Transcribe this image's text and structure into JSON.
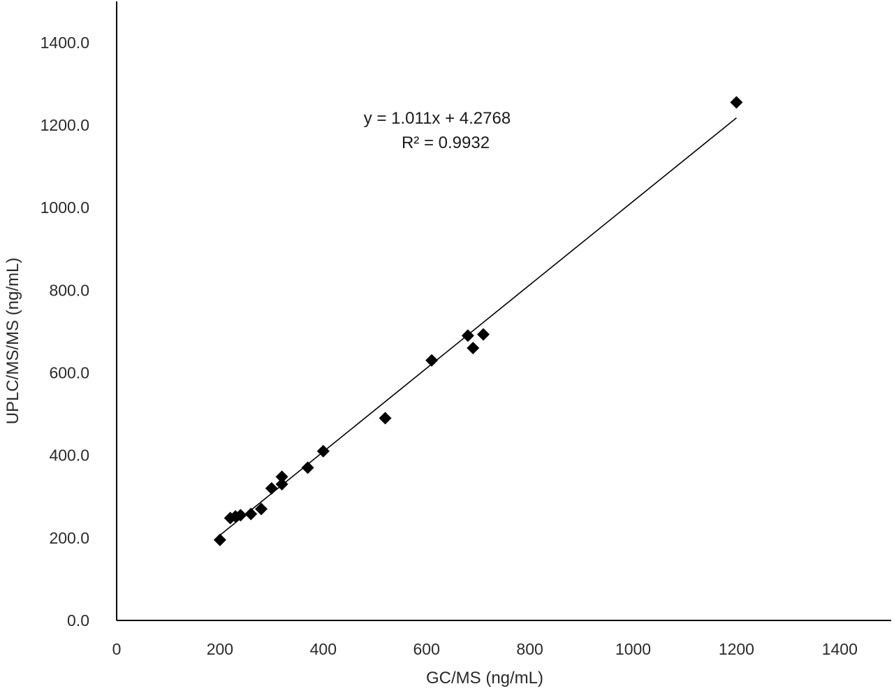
{
  "chart_data": {
    "type": "scatter",
    "title": "",
    "xlabel": "GC/MS (ng/mL)",
    "ylabel": "UPLC/MS/MS (ng/mL)",
    "xlim": [
      0,
      1500
    ],
    "ylim": [
      0,
      1500
    ],
    "x_ticks": [
      0,
      200,
      400,
      600,
      800,
      1000,
      1200,
      1400
    ],
    "x_tick_labels": [
      "0",
      "200",
      "400",
      "600",
      "800",
      "1000",
      "1200",
      "1400"
    ],
    "y_ticks": [
      0,
      200,
      400,
      600,
      800,
      1000,
      1200,
      1400
    ],
    "y_tick_labels": [
      "0.0",
      "200.0",
      "400.0",
      "600.0",
      "800.0",
      "1000.0",
      "1200.0",
      "1400.0"
    ],
    "grid": false,
    "legend": "none",
    "marker": "diamond",
    "marker_color": "#000000",
    "series": [
      {
        "x": [
          200,
          220,
          230,
          240,
          260,
          280,
          300,
          320,
          320,
          370,
          400,
          520,
          610,
          680,
          690,
          710,
          1200
        ],
        "y": [
          195,
          248,
          252,
          255,
          258,
          270,
          320,
          330,
          348,
          370,
          410,
          490,
          630,
          690,
          660,
          693,
          1255
        ]
      }
    ],
    "trendline": {
      "type": "linear",
      "slope": 1.011,
      "intercept": 4.2768,
      "x_range": [
        200,
        1200
      ],
      "equation_label": "y = 1.011x + 4.2768",
      "r2_label": "R² = 0.9932"
    }
  }
}
